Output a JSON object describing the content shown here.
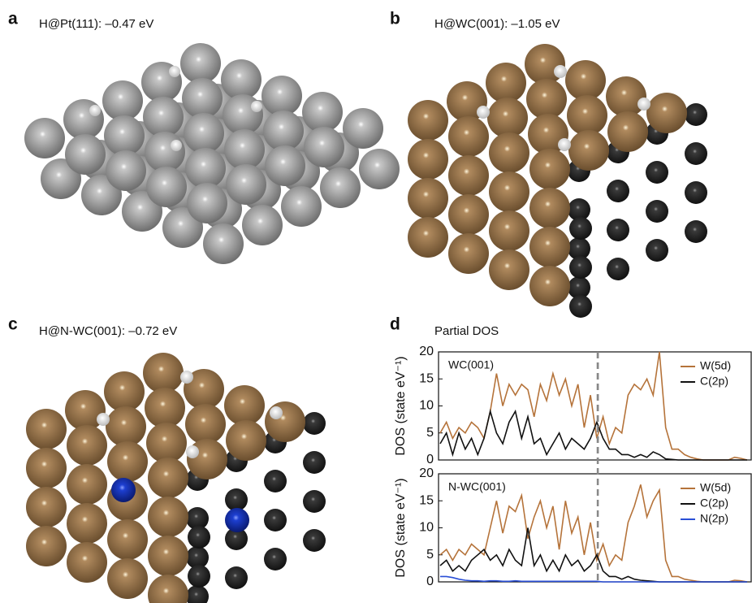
{
  "panels": [
    {
      "label": "a",
      "title": "H@Pt(111): –0.47 eV"
    },
    {
      "label": "b",
      "title": "H@WC(001): –1.05 eV"
    },
    {
      "label": "c",
      "title": "H@N-WC(001): –0.72 eV"
    },
    {
      "label": "d",
      "title": "Partial DOS"
    }
  ],
  "chart_data": [
    {
      "type": "line",
      "annotation": "WC(001)",
      "y_label": "DOS (state eV⁻¹)",
      "ylim": [
        0,
        20
      ],
      "yticks": [
        0,
        5,
        10,
        15,
        20
      ],
      "legend": "upper right",
      "series": [
        {
          "name": "W(5d)",
          "color": "#b5733a",
          "values": [
            5,
            7,
            4,
            6,
            5,
            7,
            6,
            4,
            9,
            16,
            10,
            14,
            12,
            14,
            13,
            8,
            14,
            11,
            16,
            12,
            15,
            10,
            14,
            6,
            12,
            4,
            8,
            3,
            6,
            5,
            12,
            14,
            13,
            15,
            12,
            20,
            6,
            2,
            2,
            1,
            0.5,
            0.2,
            0,
            0,
            0,
            0,
            0,
            0.5,
            0.3,
            0
          ]
        },
        {
          "name": "C(2p)",
          "color": "#111111",
          "values": [
            3,
            5,
            1,
            5,
            2,
            4,
            1,
            4,
            9,
            5,
            3,
            7,
            9,
            4,
            8,
            3,
            4,
            1,
            3,
            5,
            2,
            4,
            3,
            2,
            4,
            7,
            4,
            2,
            2,
            1,
            1,
            0.5,
            1,
            0.5,
            1.5,
            1,
            0.2,
            0.1,
            0,
            0,
            0,
            0,
            0,
            0,
            0,
            0,
            0,
            0,
            0,
            0
          ]
        }
      ]
    },
    {
      "type": "line",
      "annotation": "N-WC(001)",
      "y_label": "DOS (state eV⁻¹)",
      "ylim": [
        0,
        20
      ],
      "yticks": [
        0,
        5,
        10,
        15,
        20
      ],
      "legend": "upper right",
      "series": [
        {
          "name": "W(5d)",
          "color": "#b5733a",
          "values": [
            5,
            6,
            4,
            6,
            5,
            7,
            6,
            5,
            10,
            15,
            9,
            14,
            13,
            16,
            8,
            12,
            15,
            10,
            14,
            6,
            15,
            9,
            12,
            5,
            11,
            4,
            7,
            3,
            5,
            4,
            11,
            14,
            18,
            12,
            15,
            17,
            4,
            1,
            1,
            0.5,
            0.3,
            0.1,
            0,
            0,
            0,
            0,
            0,
            0.3,
            0.2,
            0
          ]
        },
        {
          "name": "C(2p)",
          "color": "#111111",
          "values": [
            3,
            4,
            2,
            3,
            2,
            4,
            5,
            6,
            4,
            5,
            3,
            6,
            4,
            3,
            10,
            3,
            5,
            2,
            4,
            2,
            5,
            3,
            4,
            2,
            3,
            5,
            2,
            1,
            1,
            0.5,
            1,
            0.5,
            0.3,
            0.2,
            0.1,
            0,
            0,
            0,
            0,
            0,
            0,
            0,
            0,
            0,
            0,
            0,
            0,
            0,
            0,
            0
          ]
        },
        {
          "name": "N(2p)",
          "color": "#2a4fd6",
          "values": [
            1,
            1,
            0.8,
            0.5,
            0.3,
            0.2,
            0.2,
            0.1,
            0.2,
            0.2,
            0.1,
            0.1,
            0.2,
            0.1,
            0.1,
            0.1,
            0.1,
            0.1,
            0.1,
            0.1,
            0.1,
            0.1,
            0.1,
            0.1,
            0.1,
            0.1,
            0,
            0,
            0,
            0,
            0,
            0,
            0,
            0,
            0,
            0,
            0,
            0,
            0,
            0,
            0,
            0,
            0,
            0,
            0,
            0,
            0,
            0,
            0,
            0
          ]
        }
      ]
    }
  ]
}
